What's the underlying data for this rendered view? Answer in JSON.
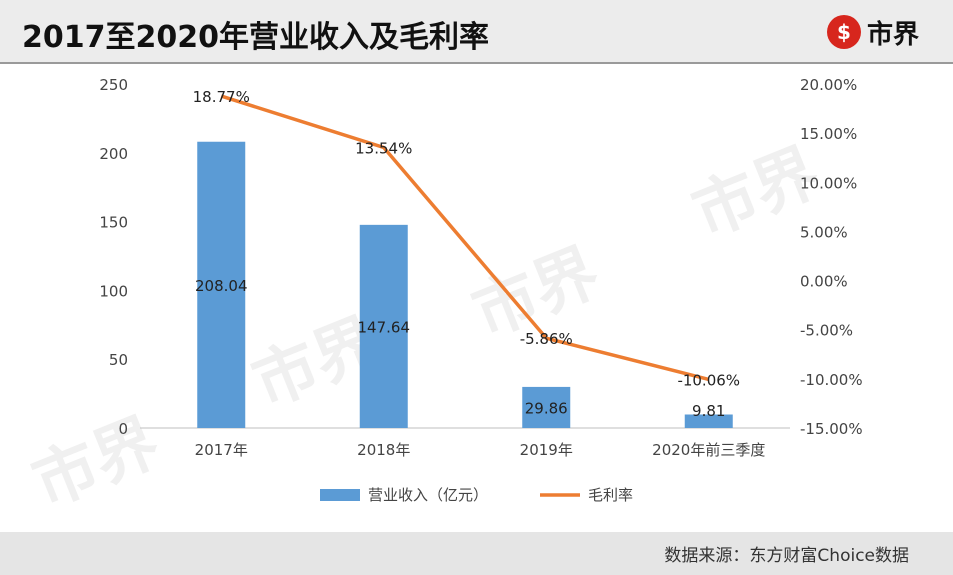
{
  "header": {
    "title": "2017至2020年营业收入及毛利率",
    "logo_text": "市界",
    "logo_mark": "$"
  },
  "watermark_text": "市界",
  "footer": {
    "source": "数据来源：东方财富Choice数据"
  },
  "colors": {
    "bar": "#5b9bd5",
    "line": "#ed7d31",
    "logo": "#d7261d"
  },
  "chart_data": {
    "type": "bar+line",
    "categories": [
      "2017年",
      "2018年",
      "2019年",
      "2020年前三季度"
    ],
    "series": [
      {
        "name": "营业收入（亿元）",
        "type": "bar",
        "axis": "left",
        "values": [
          208.04,
          147.64,
          29.86,
          9.81
        ],
        "labels": [
          "208.04",
          "147.64",
          "29.86",
          "9.81"
        ]
      },
      {
        "name": "毛利率",
        "type": "line",
        "axis": "right",
        "values": [
          18.77,
          13.54,
          -5.86,
          -10.06
        ],
        "labels": [
          "18.77%",
          "13.54%",
          "-5.86%",
          "-10.06%"
        ]
      }
    ],
    "y_left": {
      "ylim": [
        0,
        250
      ],
      "ticks": [
        "0",
        "50",
        "100",
        "150",
        "200",
        "250"
      ]
    },
    "y_right": {
      "ylim": [
        -15,
        20
      ],
      "ticks": [
        "-15.00%",
        "-10.00%",
        "-5.00%",
        "0.00%",
        "5.00%",
        "10.00%",
        "15.00%",
        "20.00%"
      ]
    },
    "grid": false,
    "legend_position": "bottom"
  }
}
